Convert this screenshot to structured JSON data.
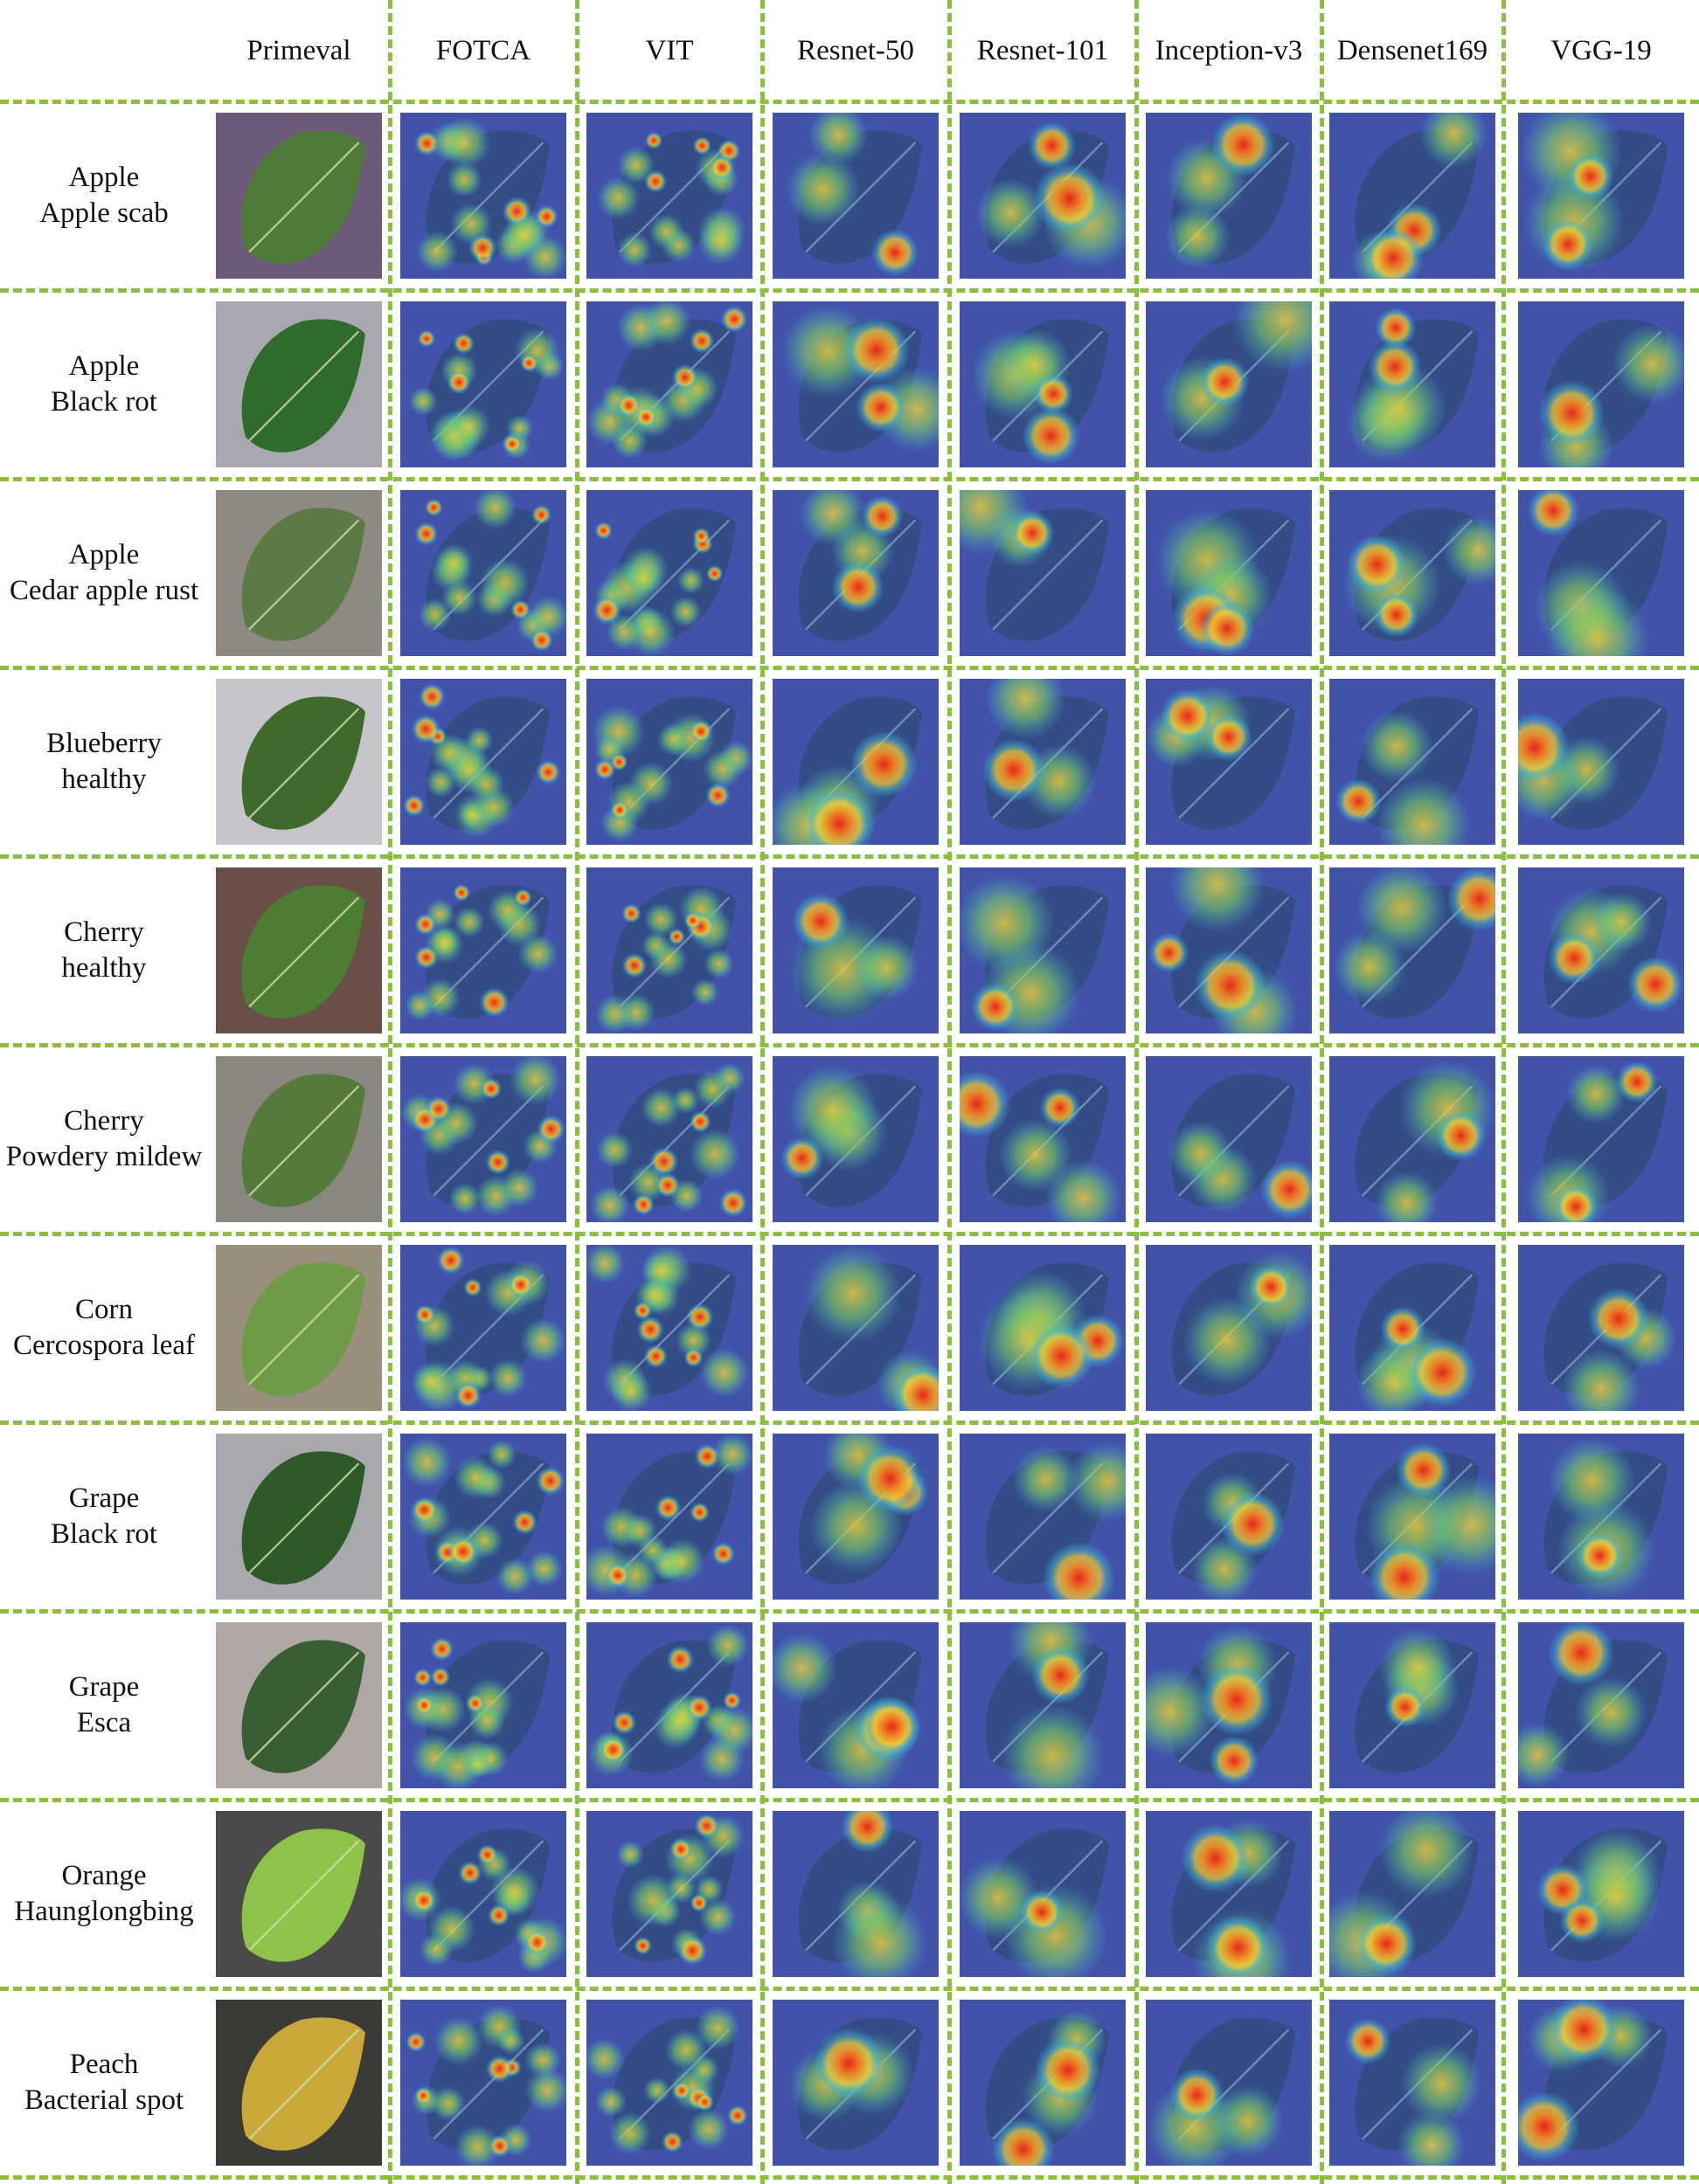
{
  "figure": {
    "columns": [
      "Primeval",
      "FOTCA",
      "VIT",
      "Resnet-50",
      "Resnet-101",
      "Inception-v3",
      "Densenet169",
      "VGG-19"
    ],
    "rows": [
      {
        "line1": "Apple",
        "line2": "Apple scab",
        "leaf_color": "#4f7a3a",
        "bg_color": "#6d5a78"
      },
      {
        "line1": "Apple",
        "line2": "Black rot",
        "leaf_color": "#2f6b2d",
        "bg_color": "#a9a7b0"
      },
      {
        "line1": "Apple",
        "line2": "Cedar apple rust",
        "leaf_color": "#5c7a45",
        "bg_color": "#8e8a82"
      },
      {
        "line1": "Blueberry",
        "line2": "healthy",
        "leaf_color": "#3f6a2c",
        "bg_color": "#c8c4cc"
      },
      {
        "line1": "Cherry",
        "line2": "healthy",
        "leaf_color": "#4d7d34",
        "bg_color": "#6a4f48"
      },
      {
        "line1": "Cherry",
        "line2": "Powdery mildew",
        "leaf_color": "#557a3c",
        "bg_color": "#8a8680"
      },
      {
        "line1": "Corn",
        "line2": "Cercospora leaf",
        "leaf_color": "#6f9a48",
        "bg_color": "#9a8f7c"
      },
      {
        "line1": "Grape",
        "line2": "Black rot",
        "leaf_color": "#2e5a2a",
        "bg_color": "#a8a8ae"
      },
      {
        "line1": "Grape",
        "line2": "Esca",
        "leaf_color": "#3a5e34",
        "bg_color": "#b0a8a4"
      },
      {
        "line1": "Orange",
        "line2": "Haunglongbing",
        "leaf_color": "#8fc24a",
        "bg_color": "#4a4a48"
      },
      {
        "line1": "Peach",
        "line2": "Bacterial spot",
        "leaf_color": "#c9a83a",
        "bg_color": "#3a3a36"
      }
    ],
    "colors": {
      "dashed_border": "#8bbf3f",
      "heatmap_base": "#4152a8",
      "hot": "#e8261a",
      "warm": "#f2d23a",
      "cool": "#3fb8d8"
    }
  }
}
